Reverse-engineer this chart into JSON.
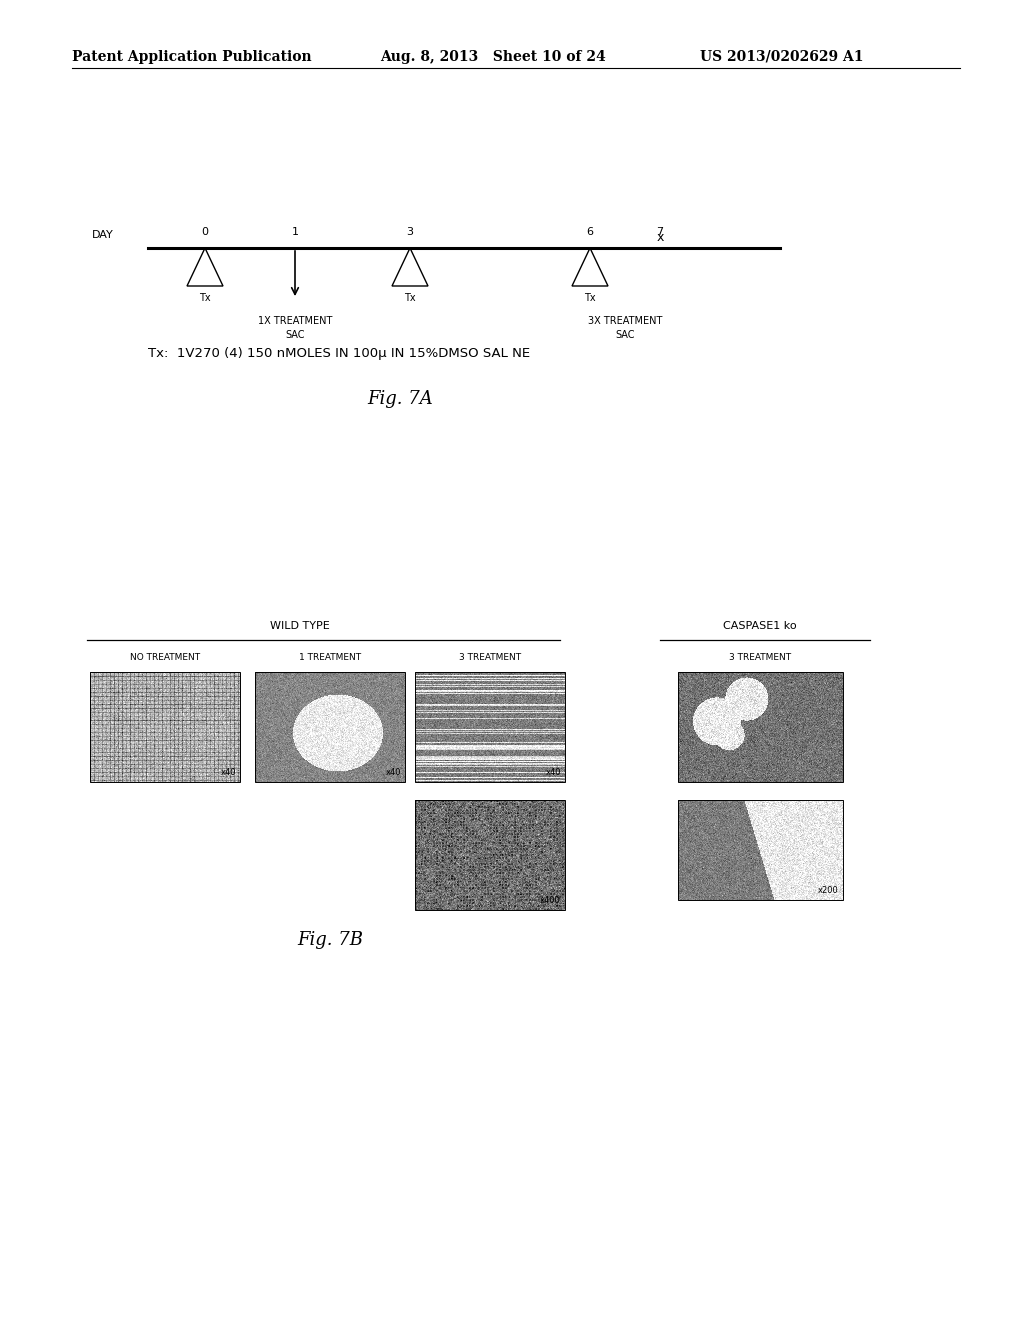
{
  "header_left": "Patent Application Publication",
  "header_mid": "Aug. 8, 2013   Sheet 10 of 24",
  "header_right": "US 2013/0202629 A1",
  "fig7a": {
    "title": "Fig. 7A",
    "day_label": "DAY",
    "triangle_days": [
      0,
      3,
      6
    ],
    "arrow_day": 1,
    "cross_day": 7,
    "label_1x_line1": "1X TREATMENT",
    "label_1x_line2": "SAC",
    "label_3x_line1": "3X TREATMENT",
    "label_3x_line2": "SAC",
    "tx_line": "Tx:  1V270 (4) 150 nMOLES IN 100μ IN 15%DMSO SAL NE"
  },
  "fig7b": {
    "title": "Fig. 7B",
    "wt_label": "WILD TYPE",
    "cas_label": "CASPASE1 ko",
    "col_labels_wt": [
      "NO TREATMENT",
      "1 TREATMENT",
      "3 TREATMENT"
    ],
    "col_label_cas": "3 TREATMENT"
  },
  "background_color": "#ffffff",
  "text_color": "#000000",
  "font_size_header": 10,
  "font_size_body": 8,
  "font_size_small": 7,
  "font_size_caption": 13
}
